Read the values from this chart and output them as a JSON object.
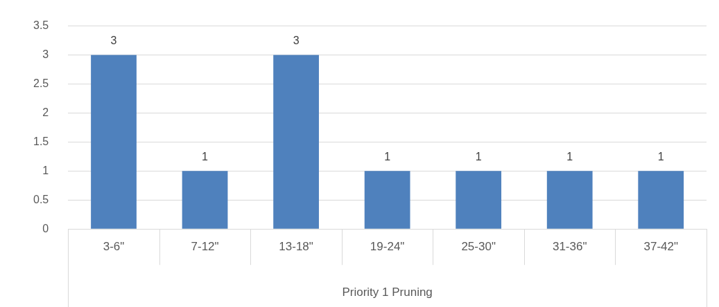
{
  "chart_data": {
    "type": "bar",
    "categories": [
      "3-6\"",
      "7-12\"",
      "13-18\"",
      "19-24\"",
      "25-30\"",
      "31-36\"",
      "37-42\""
    ],
    "values": [
      3,
      1,
      3,
      1,
      1,
      1,
      1
    ],
    "color": "#4f81bd",
    "xlabel": "Priority 1 Pruning",
    "ylim": [
      0,
      3.5
    ],
    "yticks": [
      0,
      0.5,
      1,
      1.5,
      2,
      2.5,
      3,
      3.5
    ],
    "grid": "y",
    "data_labels": true,
    "legend": false
  }
}
